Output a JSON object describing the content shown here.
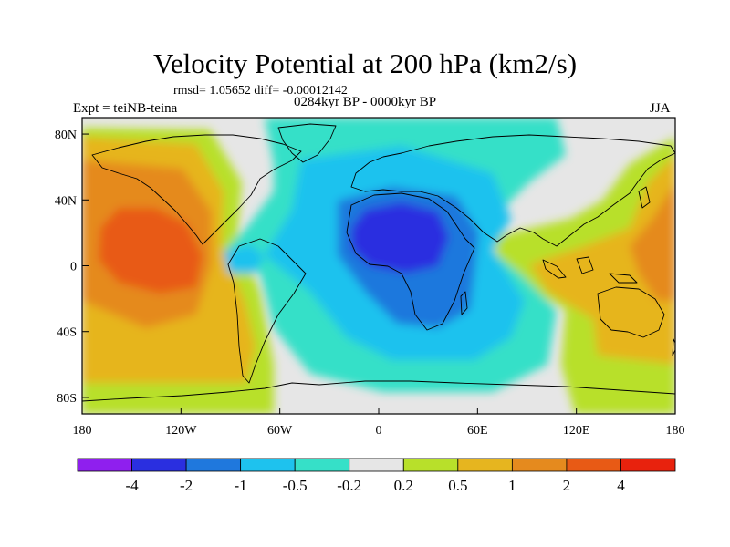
{
  "title": "Velocity Potential at 200 hPa (km2/s)",
  "stats_text": "rmsd= 1.05652 diff= -0.00012142",
  "left_label": "Expt = teiNB-teina",
  "center_label": "0284kyr BP - 0000kyr BP",
  "right_label": "JJA",
  "map": {
    "projection": "cylindrical equidistant",
    "lon_range": [
      -180,
      180
    ],
    "lat_range": [
      -90,
      90
    ],
    "x_ticks": [
      {
        "lon": -180,
        "label": "180"
      },
      {
        "lon": -120,
        "label": "120W"
      },
      {
        "lon": -60,
        "label": "60W"
      },
      {
        "lon": 0,
        "label": "0"
      },
      {
        "lon": 60,
        "label": "60E"
      },
      {
        "lon": 120,
        "label": "120E"
      },
      {
        "lon": 180,
        "label": "180"
      }
    ],
    "y_ticks": [
      {
        "lat": 80,
        "label": "80N"
      },
      {
        "lat": 40,
        "label": "40N"
      },
      {
        "lat": 0,
        "label": "0"
      },
      {
        "lat": -40,
        "label": "40S"
      },
      {
        "lat": -80,
        "label": "80S"
      }
    ]
  },
  "colorbar": {
    "colors": [
      "#8f1fee",
      "#2a2fe0",
      "#1f78dd",
      "#1ec2ee",
      "#36e0c8",
      "#e6e6e6",
      "#b8e02a",
      "#e6b51f",
      "#e58a1e",
      "#e85a15",
      "#e8220d"
    ],
    "labels": [
      "-4",
      "-2",
      "-1",
      "-0.5",
      "-0.2",
      "0.2",
      "0.5",
      "1",
      "2",
      "4"
    ]
  }
}
